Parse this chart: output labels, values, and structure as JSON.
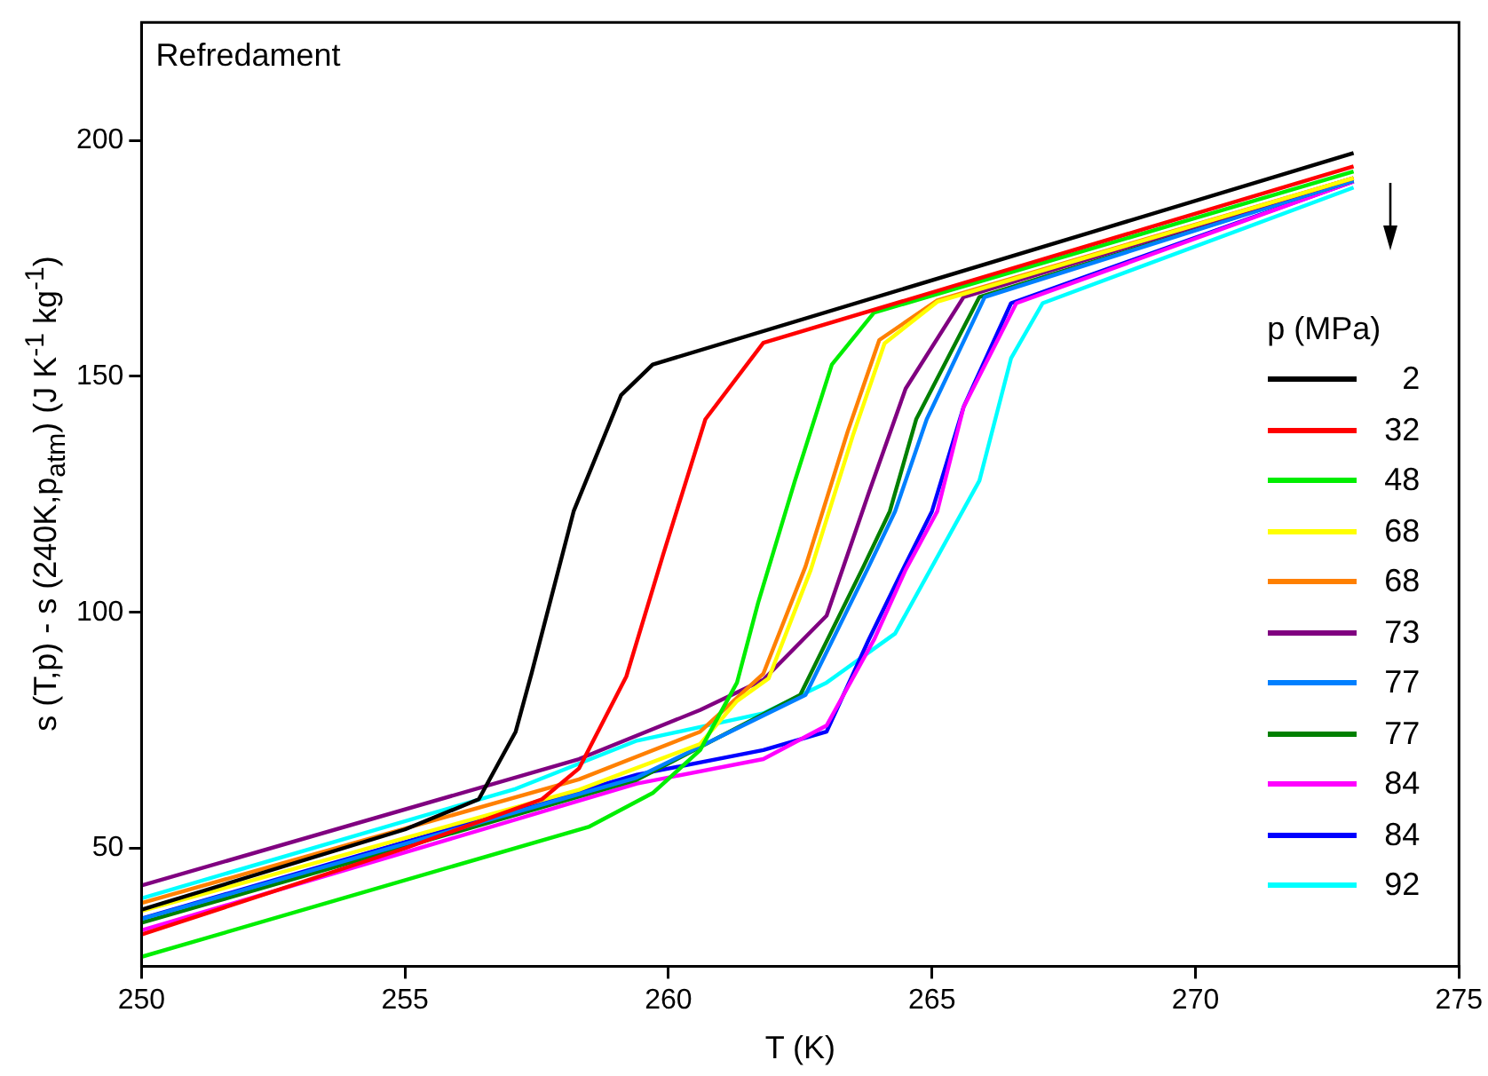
{
  "chart_data": {
    "type": "line",
    "title": "Refredament",
    "xlabel": "T (K)",
    "ylabel": "s (T,p) - s (240K,p$_{atm}$)  (J K$^{-1}$ kg$^{-1}$)",
    "legend_title": "p (MPa)",
    "legend": "right",
    "grid": false,
    "marker": "none",
    "line_style": "solid",
    "xlim": [
      250,
      275
    ],
    "xticks": [
      250,
      255,
      260,
      265,
      270,
      275
    ],
    "ylim": [
      25,
      225
    ],
    "yticks": [
      50,
      100,
      150,
      200
    ],
    "series": [
      {
        "name": "2",
        "color": "#000000",
        "x": [
          250,
          255,
          256.4,
          257.1,
          257.4,
          258.2,
          259.1,
          259.7,
          273
        ],
        "values": [
          37,
          54,
          60.4,
          74.7,
          87,
          121.4,
          146,
          152.5,
          197.3
        ]
      },
      {
        "name": "32",
        "color": "#ff0000",
        "x": [
          250,
          255,
          257.6,
          258.3,
          259.2,
          259.9,
          260.7,
          261.8,
          273
        ],
        "values": [
          31.7,
          50,
          60.4,
          66.9,
          86.4,
          112.3,
          140.9,
          157.1,
          194.5
        ]
      },
      {
        "name": "48",
        "color": "#00ee00",
        "x": [
          250,
          258.5,
          259.7,
          260.6,
          261.3,
          261.7,
          262.4,
          263.1,
          263.9,
          273
        ],
        "values": [
          27,
          54.6,
          61.7,
          70.8,
          85.1,
          102,
          127.9,
          152.5,
          163.5,
          193.4
        ]
      },
      {
        "name": "68",
        "color": "#ffff00",
        "x": [
          250,
          258.3,
          260.6,
          261.3,
          261.9,
          262.7,
          263.5,
          264.1,
          265.1,
          273
        ],
        "values": [
          36.7,
          62.4,
          72.1,
          81.2,
          86,
          109,
          137.5,
          157,
          165.8,
          192
        ]
      },
      {
        "name": "68",
        "color": "#ff8000",
        "x": [
          250,
          258.3,
          260.6,
          261.8,
          262.6,
          263.4,
          264,
          265.1,
          273
        ],
        "values": [
          38.4,
          64.6,
          74.7,
          87,
          109.7,
          138.3,
          157.7,
          166.1,
          192
        ]
      },
      {
        "name": "73",
        "color": "#800080",
        "x": [
          250,
          258.3,
          260.6,
          261.8,
          263,
          263.8,
          264.5,
          265.6,
          273
        ],
        "values": [
          42.1,
          68.9,
          79.3,
          85.7,
          99.3,
          125.3,
          147.4,
          166.8,
          192
        ]
      },
      {
        "name": "77",
        "color": "#0080ff",
        "x": [
          250,
          259.4,
          262.6,
          263.8,
          264.3,
          264.9,
          266,
          273
        ],
        "values": [
          35,
          65,
          82.5,
          109.7,
          121.4,
          140.9,
          166.8,
          191.5
        ]
      },
      {
        "name": "77",
        "color": "#008000",
        "x": [
          250,
          259.4,
          262.5,
          263.7,
          264.2,
          264.7,
          265.9,
          273
        ],
        "values": [
          34.2,
          64.5,
          82.5,
          109.7,
          121.4,
          140.9,
          166.8,
          191.5
        ]
      },
      {
        "name": "84",
        "color": "#ff00ff",
        "x": [
          250,
          259.4,
          261.8,
          263,
          263.9,
          264.5,
          265.1,
          265.6,
          266.6,
          273
        ],
        "values": [
          32.6,
          63.7,
          68.9,
          76,
          94.2,
          109,
          121.4,
          143.5,
          165.5,
          191.3
        ]
      },
      {
        "name": "84",
        "color": "#0000ff",
        "x": [
          250,
          259.4,
          261.8,
          263,
          263.8,
          264.4,
          265,
          265.6,
          266.5,
          273
        ],
        "values": [
          35.1,
          65.6,
          70.8,
          74.7,
          94.2,
          108,
          121.4,
          143.5,
          165.5,
          191.3
        ]
      },
      {
        "name": "92",
        "color": "#00ffff",
        "x": [
          250,
          257.1,
          259.4,
          261.8,
          263,
          264.3,
          265.9,
          266.5,
          267.1,
          273
        ],
        "values": [
          39.4,
          62.6,
          72.8,
          78.6,
          85.1,
          95.5,
          127.9,
          153.8,
          165.5,
          190
        ]
      }
    ]
  }
}
